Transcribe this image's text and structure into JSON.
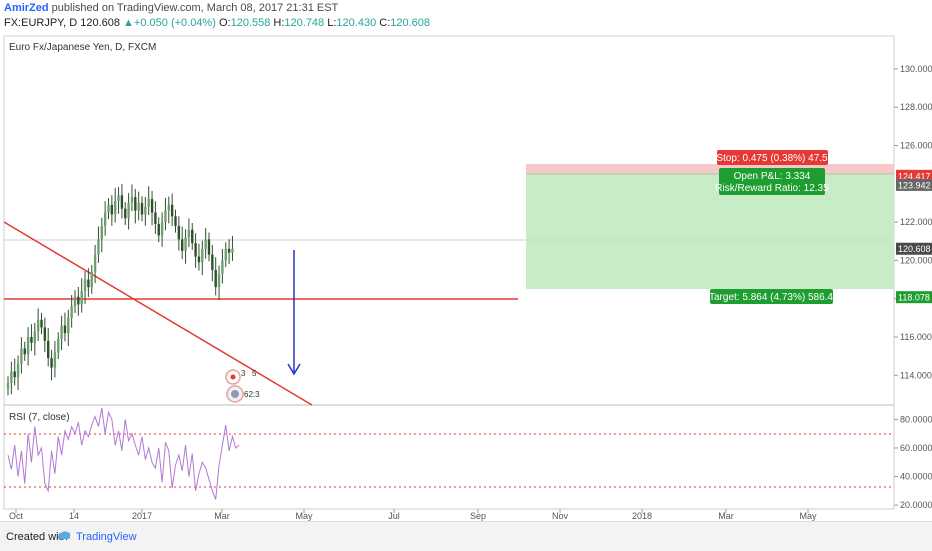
{
  "header": {
    "author": "AmirZed",
    "published": " published on TradingView.com, March 08, 2017 21:31 EST",
    "symbol": "FX:EURJPY, D",
    "last": "120.608",
    "change": "▲+0.050 (+0.04%)",
    "o_label": "O:",
    "o_value": "120.558",
    "h_label": "H:",
    "h_value": "120.748",
    "l_label": "L:",
    "l_value": "120.430",
    "c_label": "C:",
    "c_value": "120.608"
  },
  "footer": {
    "created_with": "Created with",
    "brand": "TradingView"
  },
  "colors": {
    "up": "#26a69a",
    "down": "#ef5350",
    "candle": "#2f4f2f",
    "profit_zone": "#c8ebc8",
    "loss_zone": "#f8c8c8",
    "stop_label": "#e53935",
    "target_label": "#1e9e30",
    "arrow": "#2233cc",
    "trendline": "#e53935",
    "rsi": "#b278d6"
  },
  "chart_data": [
    {
      "type": "candlestick",
      "title": "Euro Fx/Japanese Yen, D, FXCM",
      "y_axis_ticks": [
        "130.000",
        "128.000",
        "126.000",
        "122.000",
        "120.000",
        "118.000",
        "116.000",
        "114.000"
      ],
      "ylim": [
        112.5,
        131.3
      ],
      "x_axis_ticks": [
        "Oct",
        "14",
        "2017",
        "Mar",
        "May",
        "Jul",
        "Sep",
        "Nov",
        "2018",
        "Mar",
        "May"
      ],
      "grid": false,
      "ohlc_summary": {
        "open": 120.558,
        "high": 120.748,
        "low": 120.43,
        "close": 120.608
      },
      "series_close": [
        113.6,
        114.2,
        113.9,
        114.6,
        115.4,
        115.1,
        116.0,
        115.7,
        116.3,
        116.9,
        116.5,
        115.8,
        114.9,
        114.4,
        115.2,
        115.9,
        116.6,
        116.2,
        117.0,
        117.6,
        118.1,
        117.7,
        118.4,
        119.0,
        118.6,
        119.4,
        120.3,
        121.1,
        121.8,
        122.5,
        122.9,
        122.4,
        123.1,
        123.4,
        122.7,
        122.2,
        123.0,
        123.3,
        122.6,
        123.0,
        122.4,
        122.8,
        123.2,
        122.5,
        121.9,
        121.3,
        122.0,
        122.6,
        122.9,
        122.3,
        121.8,
        121.1,
        120.5,
        121.2,
        121.6,
        120.9,
        120.2,
        119.9,
        120.6,
        121.1,
        120.3,
        119.5,
        118.6,
        119.3,
        120.0,
        120.6,
        120.4,
        120.608
      ],
      "price_labels": [
        {
          "value": "124.417",
          "kind": "stop"
        },
        {
          "value": "123.942",
          "kind": "entry"
        },
        {
          "value": "120.608",
          "kind": "last"
        },
        {
          "value": "118.078",
          "kind": "target"
        }
      ],
      "annotations": {
        "stop": "Stop: 0.475 (0.38%) 47.5",
        "open_pl": "Open P&L: 3.334",
        "rr": "Risk/Reward Ratio: 12.35",
        "target": "Target: 5.864 (4.73%) 586.4",
        "events_a": "3",
        "events_b": "5",
        "events_c": "62:3"
      },
      "position": {
        "entry": 123.942,
        "stop": 124.417,
        "target": 118.078
      },
      "horizontal_line": 117.55,
      "trendline": {
        "from": 121.6,
        "to": 112.5
      }
    },
    {
      "type": "line",
      "title": "RSI (7, close)",
      "y_axis_ticks": [
        "80.0000",
        "60.0000",
        "40.0000",
        "20.0000"
      ],
      "ylim": [
        18,
        88
      ],
      "levels": [
        70,
        30
      ],
      "series": [
        {
          "values": [
            55,
            45,
            62,
            40,
            58,
            35,
            70,
            50,
            75,
            55,
            60,
            35,
            30,
            58,
            42,
            68,
            55,
            72,
            66,
            75,
            70,
            78,
            62,
            72,
            68,
            76,
            82,
            75,
            88,
            70,
            85,
            80,
            62,
            72,
            58,
            80,
            65,
            70,
            62,
            55,
            68,
            52,
            60,
            50,
            46,
            60,
            36,
            64,
            58,
            32,
            48,
            55,
            44,
            62,
            40,
            56,
            30,
            42,
            50,
            46,
            38,
            30,
            24,
            48,
            62,
            76,
            58,
            68,
            60,
            62
          ]
        }
      ]
    }
  ]
}
